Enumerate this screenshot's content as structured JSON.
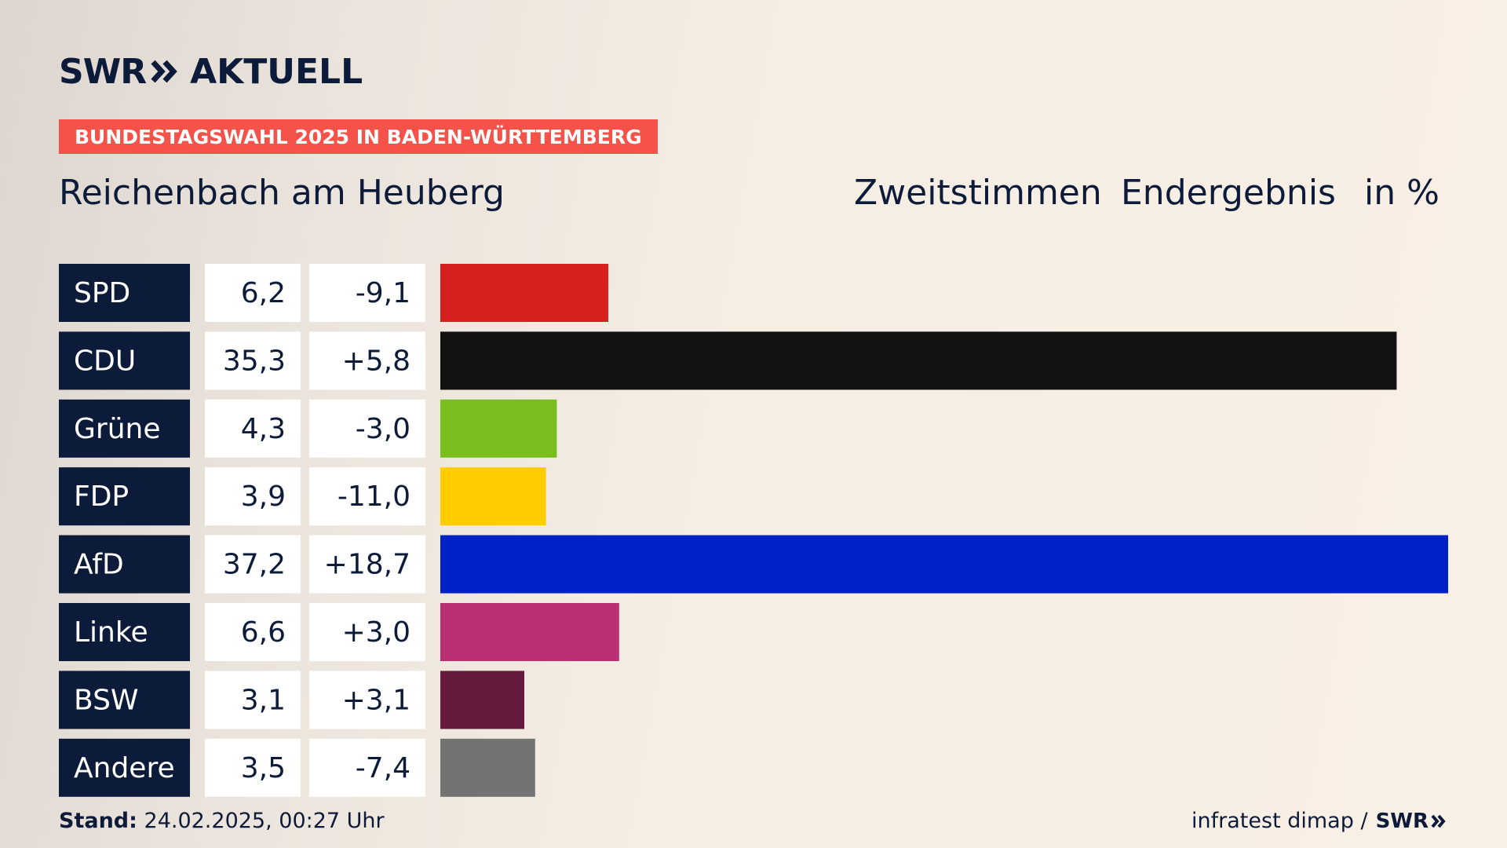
{
  "brand": {
    "swr": "SWR",
    "aktuell": "AKTUELL"
  },
  "banner": "BUNDESTAGSWAHL 2025 IN BADEN-WÜRTTEMBERG",
  "place": "Reichenbach am Heuberg",
  "header": {
    "votes": "Zweitstimmen",
    "status": "Endergebnis",
    "unit": "in %"
  },
  "footer": {
    "stand_label": "Stand:",
    "stand_value": "24.02.2025, 00:27 Uhr",
    "source": "infratest dimap /",
    "source_brand": "SWR"
  },
  "chart_data": {
    "type": "bar",
    "orientation": "horizontal",
    "categories": [
      "SPD",
      "CDU",
      "Grüne",
      "FDP",
      "AfD",
      "Linke",
      "BSW",
      "Andere"
    ],
    "values": [
      6.2,
      35.3,
      4.3,
      3.9,
      37.2,
      6.6,
      3.1,
      3.5
    ],
    "value_labels": [
      "6,2",
      "35,3",
      "4,3",
      "3,9",
      "37,2",
      "6,6",
      "3,1",
      "3,5"
    ],
    "change_labels": [
      "-9,1",
      "+5,8",
      "-3,0",
      "-11,0",
      "+18,7",
      "+3,0",
      "+3,1",
      "-7,4"
    ],
    "colors": [
      "#d71f1f",
      "#121212",
      "#78be1e",
      "#ffcc00",
      "#0020c8",
      "#bb3075",
      "#661a3d",
      "#737373"
    ],
    "title": "",
    "xlabel": "",
    "ylabel": "",
    "xlim": [
      0,
      37.2
    ],
    "grid": false,
    "legend": "none"
  }
}
